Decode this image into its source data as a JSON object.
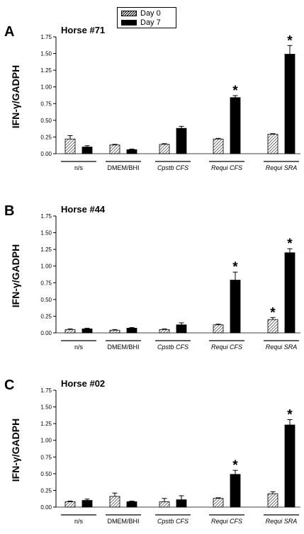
{
  "legend": {
    "day0_label": "Day 0",
    "day7_label": "Day 7"
  },
  "chart_data": [
    {
      "type": "bar",
      "panel_letter": "A",
      "title": "Horse #71",
      "ylabel": "IFN-γ/GADPH",
      "ylim": [
        0,
        1.75
      ],
      "yticks": [
        "0.00",
        "0.25",
        "0.50",
        "0.75",
        "1.00",
        "1.25",
        "1.50",
        "1.75"
      ],
      "categories": [
        "n/s",
        "DMEM/BHI",
        "Cpstb CFS",
        "Requi CFS",
        "Requi SRA"
      ],
      "series": [
        {
          "name": "Day 0",
          "values": [
            0.22,
            0.13,
            0.14,
            0.22,
            0.29
          ],
          "errors": [
            0.05,
            0.01,
            0.01,
            0.01,
            0.01
          ],
          "stars": [
            false,
            false,
            false,
            false,
            false
          ]
        },
        {
          "name": "Day 7",
          "values": [
            0.1,
            0.06,
            0.38,
            0.84,
            1.49
          ],
          "errors": [
            0.02,
            0.01,
            0.03,
            0.03,
            0.13
          ],
          "stars": [
            false,
            false,
            false,
            true,
            true
          ]
        }
      ]
    },
    {
      "type": "bar",
      "panel_letter": "B",
      "title": "Horse #44",
      "ylabel": "IFN-γ/GADPH",
      "ylim": [
        0,
        1.75
      ],
      "yticks": [
        "0.00",
        "0.25",
        "0.50",
        "0.75",
        "1.00",
        "1.25",
        "1.50",
        "1.75"
      ],
      "categories": [
        "n/s",
        "DMEM/BHI",
        "Cpstb CFS",
        "Requi CFS",
        "Requi SRA"
      ],
      "series": [
        {
          "name": "Day 0",
          "values": [
            0.05,
            0.04,
            0.05,
            0.12,
            0.2
          ],
          "errors": [
            0.01,
            0.01,
            0.01,
            0.01,
            0.03
          ],
          "stars": [
            false,
            false,
            false,
            false,
            true
          ]
        },
        {
          "name": "Day 7",
          "values": [
            0.06,
            0.07,
            0.12,
            0.79,
            1.2
          ],
          "errors": [
            0.01,
            0.01,
            0.03,
            0.12,
            0.06
          ],
          "stars": [
            false,
            false,
            false,
            true,
            true
          ]
        }
      ]
    },
    {
      "type": "bar",
      "panel_letter": "C",
      "title": "Horse #02",
      "ylabel": "IFN-γ/GADPH",
      "ylim": [
        0,
        1.75
      ],
      "yticks": [
        "0.00",
        "0.25",
        "0.50",
        "0.75",
        "1.00",
        "1.25",
        "1.50",
        "1.75"
      ],
      "categories": [
        "n/s",
        "DMEM/BHI",
        "Cpstb CFS",
        "Requi CFS",
        "Requi SRA"
      ],
      "series": [
        {
          "name": "Day 0",
          "values": [
            0.08,
            0.16,
            0.08,
            0.13,
            0.2
          ],
          "errors": [
            0.01,
            0.05,
            0.05,
            0.01,
            0.03
          ],
          "stars": [
            false,
            false,
            false,
            false,
            false
          ]
        },
        {
          "name": "Day 7",
          "values": [
            0.1,
            0.08,
            0.11,
            0.49,
            1.23
          ],
          "errors": [
            0.02,
            0.01,
            0.06,
            0.06,
            0.08
          ],
          "stars": [
            false,
            false,
            false,
            true,
            true
          ]
        }
      ]
    }
  ]
}
